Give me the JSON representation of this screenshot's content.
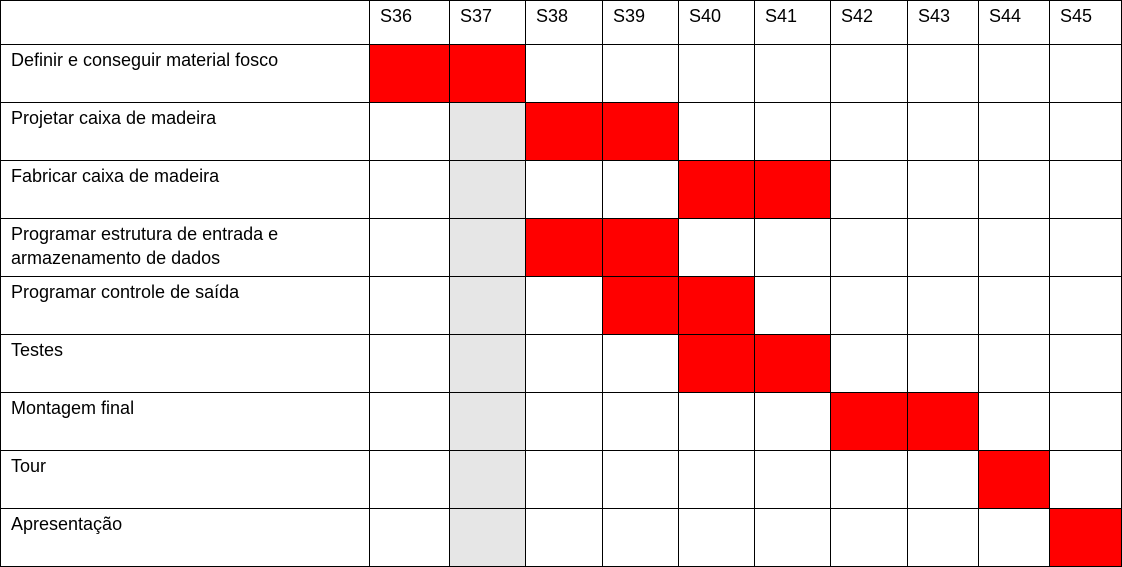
{
  "colors": {
    "active": "#ff0000",
    "holiday": "#e6e6e6",
    "blank": "#ffffff",
    "grid": "#000000"
  },
  "corner_label": "",
  "weeks": [
    "S36",
    "S37",
    "S38",
    "S39",
    "S40",
    "S41",
    "S42",
    "S43",
    "S44",
    "S45"
  ],
  "holiday_week": "S37",
  "tasks": [
    {
      "label": "Definir e conseguir material fosco",
      "weeks": [
        "S36",
        "S37"
      ]
    },
    {
      "label": "Projetar caixa de madeira",
      "weeks": [
        "S38",
        "S39"
      ]
    },
    {
      "label": "Fabricar caixa de madeira",
      "weeks": [
        "S40",
        "S41"
      ]
    },
    {
      "label": "Programar estrutura de entrada e armazenamento de dados",
      "weeks": [
        "S38",
        "S39"
      ]
    },
    {
      "label": "Programar controle de saída",
      "weeks": [
        "S39",
        "S40"
      ]
    },
    {
      "label": "Testes",
      "weeks": [
        "S40",
        "S41"
      ]
    },
    {
      "label": "Montagem final",
      "weeks": [
        "S42",
        "S43"
      ]
    },
    {
      "label": "Tour",
      "weeks": [
        "S44"
      ]
    },
    {
      "label": "Apresentação",
      "weeks": [
        "S45"
      ]
    }
  ]
}
